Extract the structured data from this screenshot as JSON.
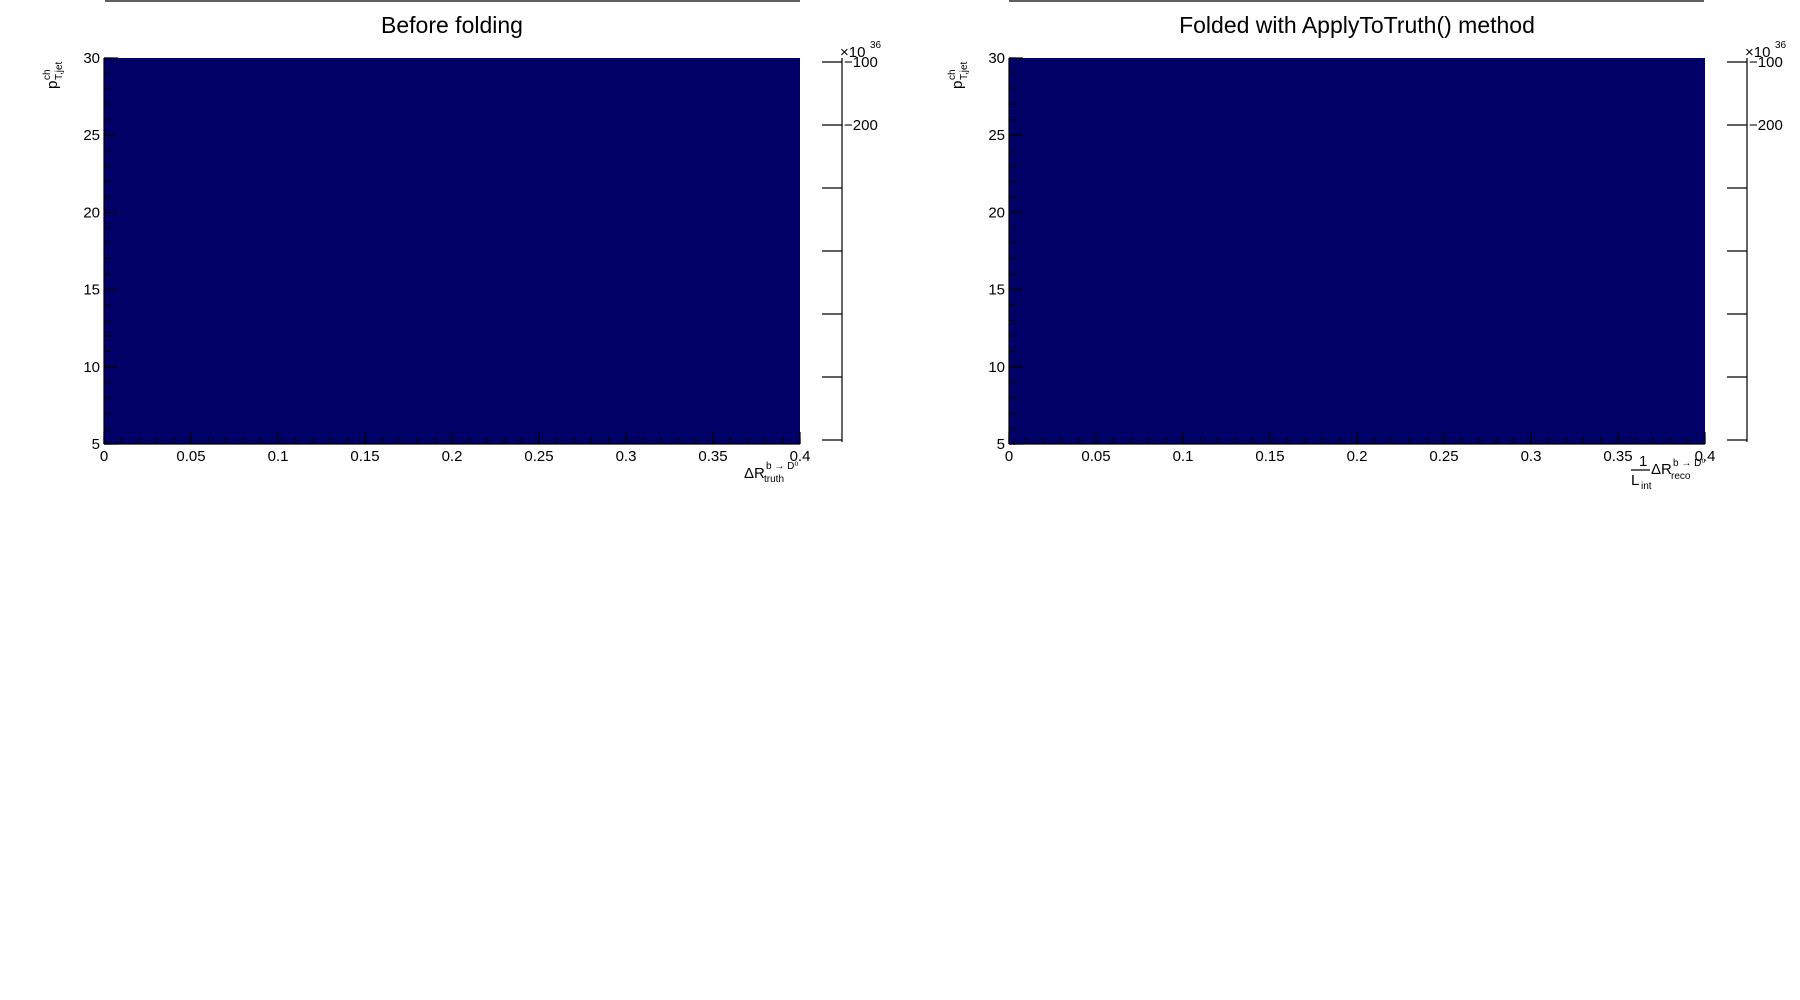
{
  "chart_data": [
    {
      "type": "heatmap",
      "title": "Before folding",
      "x": {
        "min": 0,
        "max": 0.4,
        "ticks": [
          0,
          0.05,
          0.1,
          0.15,
          0.2,
          0.25,
          0.3,
          0.35,
          0.4
        ],
        "tick_labels": [
          "0",
          "0.05",
          "0.1",
          "0.15",
          "0.2",
          "0.25",
          "0.3",
          "0.35",
          "0.4"
        ],
        "label": {
          "prefix": "",
          "base": "ΔR",
          "sub": "truth",
          "sup": "b → D⁰"
        }
      },
      "y": {
        "min": 5,
        "max": 30,
        "ticks": [
          5,
          10,
          15,
          20,
          25,
          30
        ],
        "tick_labels": [
          "5",
          "10",
          "15",
          "20",
          "25",
          "30"
        ],
        "label": {
          "base": "p",
          "sub": "T,jet",
          "sup": "ch"
        }
      },
      "z": {
        "exponent": "×10",
        "exponent_power": "36",
        "ticks": [
          -100,
          -200
        ],
        "tick_labels": [
          "−100",
          "−200"
        ]
      },
      "fill_color": "#000066"
    },
    {
      "type": "heatmap",
      "title": "Folded with ApplyToTruth() method",
      "x": {
        "min": 0,
        "max": 0.4,
        "ticks": [
          0,
          0.05,
          0.1,
          0.15,
          0.2,
          0.25,
          0.3,
          0.35,
          0.4
        ],
        "tick_labels": [
          "0",
          "0.05",
          "0.1",
          "0.15",
          "0.2",
          "0.25",
          "0.3",
          "0.35",
          "0.4"
        ],
        "label": {
          "prefix_num": "1",
          "prefix_den": "L",
          "prefix_den_sub": "int",
          "base": "ΔR",
          "sub": "reco",
          "sup": "b → D⁰"
        }
      },
      "y": {
        "min": 5,
        "max": 30,
        "ticks": [
          5,
          10,
          15,
          20,
          25,
          30
        ],
        "tick_labels": [
          "5",
          "10",
          "15",
          "20",
          "25",
          "30"
        ],
        "label": {
          "base": "p",
          "sub": "T,jet",
          "sup": "ch"
        }
      },
      "z": {
        "exponent": "×10",
        "exponent_power": "36",
        "ticks": [
          -100,
          -200
        ],
        "tick_labels": [
          "−100",
          "−200"
        ]
      },
      "fill_color": "#000066"
    }
  ]
}
